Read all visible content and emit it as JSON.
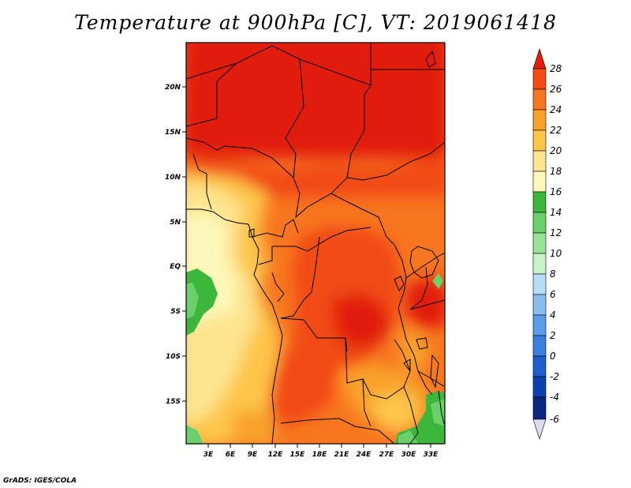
{
  "title": "Temperature at 900hPa [C], VT: 2019061418",
  "credit": "GrADS: IGES/COLA",
  "lat_ticks": [
    "20N",
    "15N",
    "10N",
    "5N",
    "EQ",
    "5S",
    "10S",
    "15S"
  ],
  "lon_ticks": [
    "3E",
    "6E",
    "9E",
    "12E",
    "15E",
    "18E",
    "21E",
    "24E",
    "27E",
    "30E",
    "33E"
  ],
  "colorbar": {
    "labels": [
      "28",
      "26",
      "24",
      "22",
      "20",
      "18",
      "16",
      "14",
      "12",
      "10",
      "8",
      "6",
      "4",
      "2",
      "0",
      "-2",
      "-4",
      "-6"
    ],
    "colors": [
      "#e21e0a",
      "#f24c14",
      "#f7761f",
      "#f9a12a",
      "#fdc54a",
      "#fde48e",
      "#fcf8b9",
      "#3cb73c",
      "#6ad06a",
      "#98e398",
      "#c8f2c8",
      "#b6dcf6",
      "#88bdf0",
      "#5a9bea",
      "#3a7ee0",
      "#1d5fd0",
      "#0d3fb0",
      "#0a2680",
      "#dcdcf4"
    ]
  }
}
